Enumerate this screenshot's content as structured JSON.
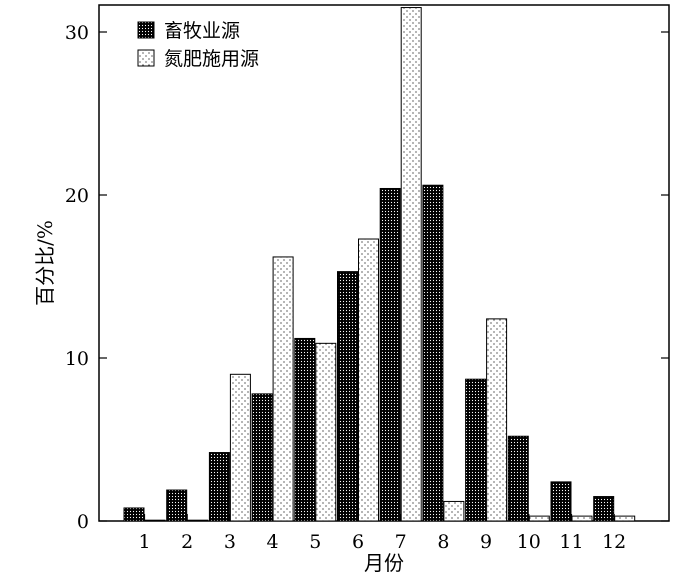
{
  "chart_data": {
    "type": "bar",
    "title": "",
    "xlabel": "月份",
    "ylabel": "百分比/%",
    "categories": [
      "1",
      "2",
      "3",
      "4",
      "5",
      "6",
      "7",
      "8",
      "9",
      "10",
      "11",
      "12"
    ],
    "ylim": [
      0,
      31.5
    ],
    "yticks": [
      0,
      10,
      20,
      30
    ],
    "grid": false,
    "legend_position": "top-left",
    "series": [
      {
        "name": "畜牧业源",
        "pattern": "dense dots (dark fill)",
        "color": "#000000",
        "values": [
          0.8,
          1.9,
          4.2,
          7.8,
          11.2,
          15.3,
          20.4,
          20.6,
          8.7,
          5.2,
          2.4,
          1.5
        ]
      },
      {
        "name": "氮肥施用源",
        "pattern": "sparse dots (light fill)",
        "color": "#ffffff",
        "values": [
          0.05,
          0.05,
          9.0,
          16.2,
          10.9,
          17.3,
          31.5,
          1.2,
          12.4,
          0.3,
          0.3,
          0.3
        ]
      }
    ]
  }
}
